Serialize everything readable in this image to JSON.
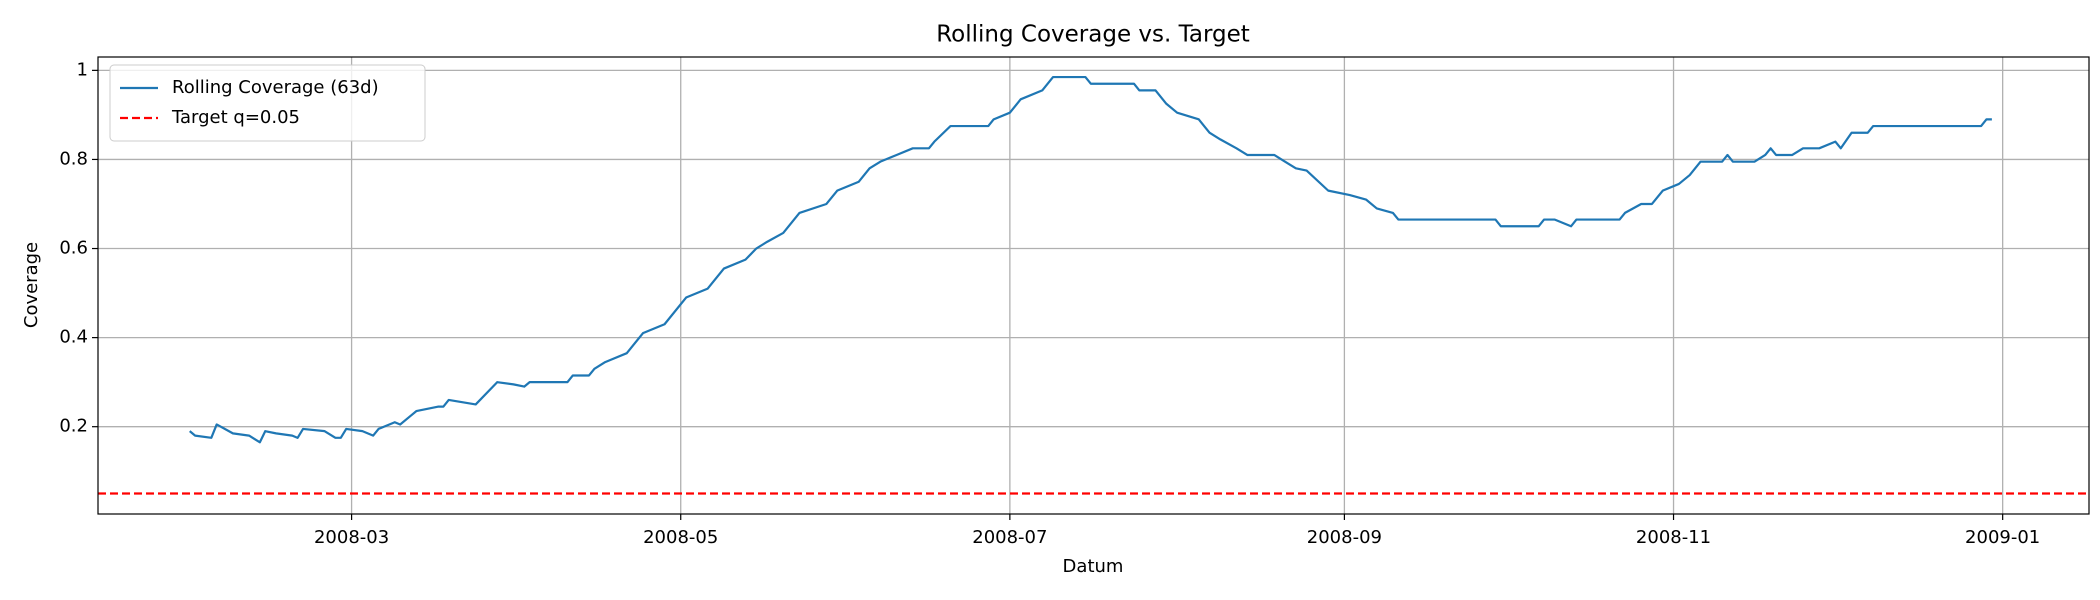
{
  "chart_data": {
    "type": "line",
    "title": "Rolling Coverage vs. Target",
    "xlabel": "Datum",
    "ylabel": "Coverage",
    "x": [
      "2008-01-31",
      "2008-02-01",
      "2008-02-04",
      "2008-02-05",
      "2008-02-08",
      "2008-02-11",
      "2008-02-13",
      "2008-02-14",
      "2008-02-16",
      "2008-02-19",
      "2008-02-20",
      "2008-02-21",
      "2008-02-25",
      "2008-02-27",
      "2008-02-28",
      "2008-02-29",
      "2008-03-03",
      "2008-03-05",
      "2008-03-06",
      "2008-03-09",
      "2008-03-10",
      "2008-03-12",
      "2008-03-13",
      "2008-03-17",
      "2008-03-18",
      "2008-03-19",
      "2008-03-24",
      "2008-03-28",
      "2008-03-31",
      "2008-04-02",
      "2008-04-03",
      "2008-04-10",
      "2008-04-11",
      "2008-04-14",
      "2008-04-15",
      "2008-04-17",
      "2008-04-18",
      "2008-04-21",
      "2008-04-24",
      "2008-04-28",
      "2008-05-02",
      "2008-05-06",
      "2008-05-09",
      "2008-05-13",
      "2008-05-15",
      "2008-05-17",
      "2008-05-20",
      "2008-05-23",
      "2008-05-28",
      "2008-05-30",
      "2008-06-03",
      "2008-06-05",
      "2008-06-07",
      "2008-06-10",
      "2008-06-13",
      "2008-06-16",
      "2008-06-17",
      "2008-06-20",
      "2008-06-27",
      "2008-06-28",
      "2008-07-01",
      "2008-07-03",
      "2008-07-07",
      "2008-07-09",
      "2008-07-15",
      "2008-07-16",
      "2008-07-24",
      "2008-07-25",
      "2008-07-28",
      "2008-07-30",
      "2008-08-01",
      "2008-08-05",
      "2008-08-07",
      "2008-08-09",
      "2008-08-12",
      "2008-08-14",
      "2008-08-19",
      "2008-08-21",
      "2008-08-23",
      "2008-08-25",
      "2008-08-29",
      "2008-09-02",
      "2008-09-05",
      "2008-09-07",
      "2008-09-10",
      "2008-09-11",
      "2008-09-29",
      "2008-09-30",
      "2008-10-07",
      "2008-10-08",
      "2008-10-10",
      "2008-10-13",
      "2008-10-14",
      "2008-10-22",
      "2008-10-23",
      "2008-10-26",
      "2008-10-28",
      "2008-10-30",
      "2008-11-02",
      "2008-11-04",
      "2008-11-06",
      "2008-11-10",
      "2008-11-11",
      "2008-11-12",
      "2008-11-16",
      "2008-11-18",
      "2008-11-19",
      "2008-11-20",
      "2008-11-23",
      "2008-11-25",
      "2008-11-28",
      "2008-12-01",
      "2008-12-02",
      "2008-12-04",
      "2008-12-07",
      "2008-12-08",
      "2008-12-28",
      "2008-12-29",
      "2008-12-30"
    ],
    "series": [
      {
        "name": "Rolling Coverage (63d)",
        "color": "#1f77b4",
        "values": [
          0.19,
          0.18,
          0.175,
          0.205,
          0.185,
          0.18,
          0.165,
          0.19,
          0.185,
          0.18,
          0.175,
          0.195,
          0.19,
          0.175,
          0.175,
          0.195,
          0.19,
          0.18,
          0.195,
          0.21,
          0.205,
          0.225,
          0.235,
          0.245,
          0.245,
          0.26,
          0.25,
          0.3,
          0.295,
          0.29,
          0.3,
          0.3,
          0.315,
          0.315,
          0.33,
          0.345,
          0.35,
          0.365,
          0.41,
          0.43,
          0.49,
          0.51,
          0.555,
          0.575,
          0.6,
          0.615,
          0.635,
          0.68,
          0.7,
          0.73,
          0.75,
          0.78,
          0.795,
          0.81,
          0.825,
          0.825,
          0.84,
          0.875,
          0.875,
          0.89,
          0.905,
          0.935,
          0.955,
          0.985,
          0.985,
          0.97,
          0.97,
          0.955,
          0.955,
          0.925,
          0.905,
          0.89,
          0.86,
          0.845,
          0.825,
          0.81,
          0.81,
          0.795,
          0.78,
          0.775,
          0.73,
          0.72,
          0.71,
          0.69,
          0.68,
          0.665,
          0.665,
          0.65,
          0.65,
          0.665,
          0.665,
          0.65,
          0.665,
          0.665,
          0.68,
          0.7,
          0.7,
          0.73,
          0.745,
          0.765,
          0.795,
          0.795,
          0.81,
          0.795,
          0.795,
          0.81,
          0.825,
          0.81,
          0.81,
          0.825,
          0.825,
          0.84,
          0.825,
          0.86,
          0.86,
          0.875,
          0.875,
          0.89,
          0.89
        ]
      }
    ],
    "hlines": [
      {
        "name": "Target q=0.05",
        "y": 0.05,
        "color": "#ff0000",
        "style": "dashed"
      }
    ],
    "xlim": [
      "2008-01-14",
      "2009-01-17"
    ],
    "xticks": [
      "2008-03",
      "2008-05",
      "2008-07",
      "2008-09",
      "2008-11",
      "2009-01"
    ],
    "ylim": [
      0.004,
      1.03
    ],
    "yticks": [
      0.2,
      0.4,
      0.6,
      0.8,
      1.0
    ],
    "grid": true,
    "legend": "upper left"
  }
}
